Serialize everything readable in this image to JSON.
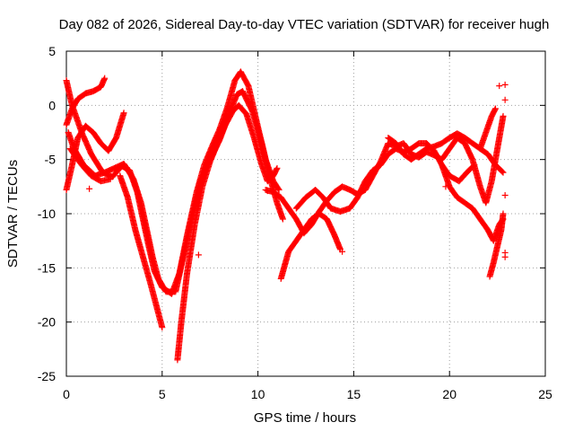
{
  "chart_data": {
    "type": "scatter",
    "title": "Day 082 of 2026, Sidereal Day-to-day VTEC variation (SDTVAR) for receiver hugh",
    "xlabel": "GPS time / hours",
    "ylabel": "SDTVAR / TECUs",
    "xlim": [
      0,
      25
    ],
    "ylim": [
      -25,
      5
    ],
    "x_ticks": [
      0,
      5,
      10,
      15,
      20,
      25
    ],
    "y_ticks": [
      -25,
      -20,
      -15,
      -10,
      -5,
      0,
      5
    ],
    "grid": true,
    "marker": "+",
    "color": "#ff0000",
    "tracks": [
      [
        [
          0.0,
          2.3
        ],
        [
          0.3,
          0.0
        ],
        [
          0.8,
          -2.5
        ],
        [
          1.3,
          -4.5
        ],
        [
          1.9,
          -6.2
        ],
        [
          2.4,
          -6.6
        ],
        [
          2.9,
          -5.6
        ],
        [
          3.3,
          -6.0
        ],
        [
          3.7,
          -8.0
        ],
        [
          4.0,
          -10.5
        ],
        [
          4.3,
          -13.0
        ],
        [
          4.6,
          -15.3
        ],
        [
          5.0,
          -16.8
        ],
        [
          5.5,
          -17.4
        ],
        [
          5.9,
          -15.5
        ],
        [
          6.3,
          -12.0
        ],
        [
          6.8,
          -8.0
        ],
        [
          7.2,
          -5.5
        ],
        [
          7.6,
          -3.8
        ],
        [
          8.0,
          -2.2
        ],
        [
          8.4,
          -0.2
        ],
        [
          8.8,
          2.3
        ],
        [
          9.1,
          3.1
        ],
        [
          9.5,
          1.8
        ],
        [
          10.0,
          -2.0
        ],
        [
          10.4,
          -5.0
        ],
        [
          10.8,
          -7.0
        ],
        [
          11.1,
          -7.8
        ]
      ],
      [
        [
          0.1,
          -2.5
        ],
        [
          0.4,
          -4.0
        ],
        [
          0.9,
          -5.5
        ],
        [
          1.5,
          -6.5
        ],
        [
          2.0,
          -6.2
        ],
        [
          2.5,
          -5.8
        ],
        [
          3.0,
          -5.4
        ],
        [
          3.5,
          -6.8
        ],
        [
          3.9,
          -9.0
        ],
        [
          4.2,
          -11.5
        ],
        [
          4.5,
          -14.0
        ],
        [
          4.8,
          -16.0
        ],
        [
          5.2,
          -17.2
        ],
        [
          5.7,
          -17.2
        ],
        [
          6.1,
          -14.0
        ],
        [
          6.6,
          -10.0
        ],
        [
          7.0,
          -7.0
        ],
        [
          7.5,
          -5.0
        ],
        [
          8.0,
          -3.2
        ],
        [
          8.5,
          -0.8
        ],
        [
          8.9,
          1.0
        ],
        [
          9.2,
          1.3
        ],
        [
          9.7,
          -0.5
        ],
        [
          10.2,
          -3.5
        ],
        [
          10.6,
          -6.5
        ],
        [
          11.0,
          -9.0
        ],
        [
          11.3,
          -10.5
        ]
      ],
      [
        [
          0.0,
          -7.8
        ],
        [
          0.3,
          -5.5
        ],
        [
          0.6,
          -3.0
        ],
        [
          1.0,
          -1.9
        ],
        [
          1.4,
          -2.5
        ],
        [
          1.8,
          -3.5
        ],
        [
          2.2,
          -4.2
        ],
        [
          2.6,
          -3.0
        ],
        [
          3.0,
          -0.7
        ]
      ],
      [
        [
          0.0,
          -1.8
        ],
        [
          0.3,
          -0.3
        ],
        [
          0.6,
          0.6
        ],
        [
          1.0,
          1.1
        ],
        [
          1.4,
          1.3
        ],
        [
          1.8,
          1.7
        ],
        [
          2.0,
          2.5
        ]
      ],
      [
        [
          0.2,
          -4.0
        ],
        [
          0.8,
          -5.5
        ],
        [
          1.3,
          -6.5
        ],
        [
          1.8,
          -7.0
        ],
        [
          2.3,
          -6.8
        ]
      ],
      [
        [
          2.8,
          -6.5
        ],
        [
          3.2,
          -8.5
        ],
        [
          3.6,
          -11.5
        ],
        [
          4.0,
          -14.0
        ],
        [
          4.4,
          -16.5
        ],
        [
          4.7,
          -18.5
        ],
        [
          5.0,
          -20.5
        ]
      ],
      [
        [
          5.8,
          -23.5
        ],
        [
          6.0,
          -20.0
        ],
        [
          6.3,
          -15.5
        ],
        [
          6.7,
          -11.0
        ],
        [
          7.1,
          -7.5
        ],
        [
          7.5,
          -5.2
        ],
        [
          7.9,
          -3.5
        ],
        [
          8.3,
          -1.8
        ],
        [
          8.7,
          -0.5
        ],
        [
          9.0,
          0.0
        ],
        [
          9.4,
          -0.8
        ],
        [
          9.8,
          -3.0
        ],
        [
          10.2,
          -5.5
        ],
        [
          10.5,
          -7.0
        ],
        [
          10.8,
          -6.5
        ],
        [
          11.0,
          -5.8
        ]
      ],
      [
        [
          10.4,
          -7.8
        ],
        [
          10.8,
          -8.0
        ],
        [
          11.2,
          -8.5
        ],
        [
          11.6,
          -9.5
        ],
        [
          12.0,
          -10.5
        ],
        [
          12.4,
          -11.8
        ],
        [
          12.8,
          -11.0
        ],
        [
          13.2,
          -9.8
        ],
        [
          13.6,
          -8.8
        ],
        [
          14.0,
          -8.0
        ],
        [
          14.4,
          -7.5
        ],
        [
          14.8,
          -7.8
        ],
        [
          15.2,
          -8.2
        ],
        [
          15.6,
          -7.8
        ],
        [
          16.0,
          -6.5
        ],
        [
          16.4,
          -5.2
        ],
        [
          16.8,
          -3.5
        ],
        [
          17.2,
          -3.8
        ],
        [
          17.6,
          -3.5
        ],
        [
          18.0,
          -4.5
        ],
        [
          18.4,
          -4.8
        ],
        [
          18.8,
          -4.3
        ],
        [
          19.2,
          -4.6
        ],
        [
          19.6,
          -5.0
        ],
        [
          20.0,
          -4.0
        ],
        [
          20.4,
          -3.0
        ],
        [
          20.8,
          -3.5
        ],
        [
          21.2,
          -5.0
        ],
        [
          21.6,
          -7.5
        ],
        [
          21.9,
          -9.0
        ],
        [
          22.2,
          -7.0
        ],
        [
          22.5,
          -4.0
        ],
        [
          22.8,
          -1.0
        ]
      ],
      [
        [
          11.2,
          -16.0
        ],
        [
          11.6,
          -13.5
        ],
        [
          12.0,
          -12.5
        ],
        [
          12.4,
          -11.5
        ],
        [
          12.8,
          -10.5
        ],
        [
          13.2,
          -10.0
        ],
        [
          13.6,
          -10.5
        ],
        [
          14.0,
          -12.0
        ],
        [
          14.3,
          -13.3
        ]
      ],
      [
        [
          12.0,
          -9.5
        ],
        [
          12.5,
          -8.5
        ],
        [
          13.0,
          -7.8
        ],
        [
          13.4,
          -8.5
        ],
        [
          13.8,
          -9.5
        ],
        [
          14.3,
          -9.8
        ],
        [
          14.8,
          -9.5
        ],
        [
          15.2,
          -8.5
        ],
        [
          15.6,
          -7.0
        ],
        [
          16.0,
          -6.0
        ],
        [
          16.4,
          -5.5
        ],
        [
          16.8,
          -4.5
        ],
        [
          17.2,
          -4.0
        ],
        [
          17.6,
          -4.3
        ],
        [
          18.0,
          -4.0
        ],
        [
          18.4,
          -3.5
        ],
        [
          18.8,
          -3.5
        ],
        [
          19.2,
          -4.2
        ],
        [
          19.6,
          -5.5
        ],
        [
          20.0,
          -7.5
        ],
        [
          20.4,
          -8.5
        ],
        [
          20.8,
          -9.0
        ],
        [
          21.2,
          -9.5
        ],
        [
          21.6,
          -10.5
        ],
        [
          22.0,
          -11.5
        ],
        [
          22.3,
          -12.5
        ],
        [
          22.6,
          -11.0
        ],
        [
          22.8,
          -10.5
        ]
      ],
      [
        [
          16.8,
          -3.0
        ],
        [
          17.2,
          -3.5
        ],
        [
          17.6,
          -4.5
        ],
        [
          18.0,
          -5.0
        ],
        [
          18.4,
          -4.5
        ],
        [
          18.8,
          -4.0
        ],
        [
          19.2,
          -3.8
        ],
        [
          19.6,
          -3.5
        ],
        [
          20.0,
          -3.0
        ],
        [
          20.4,
          -2.6
        ],
        [
          20.8,
          -3.0
        ],
        [
          21.2,
          -3.5
        ],
        [
          21.6,
          -4.0
        ],
        [
          22.0,
          -4.5
        ],
        [
          22.4,
          -5.5
        ],
        [
          22.8,
          -6.2
        ]
      ],
      [
        [
          22.1,
          -15.8
        ],
        [
          22.3,
          -14.5
        ],
        [
          22.5,
          -13.0
        ],
        [
          22.7,
          -11.5
        ],
        [
          22.8,
          -10.0
        ]
      ],
      [
        [
          21.6,
          -4.0
        ],
        [
          21.9,
          -2.5
        ],
        [
          22.2,
          -1.0
        ],
        [
          22.4,
          -0.3
        ]
      ],
      [
        [
          19.6,
          -5.5
        ],
        [
          20.0,
          -6.5
        ],
        [
          20.5,
          -7.0
        ],
        [
          20.9,
          -6.2
        ],
        [
          21.3,
          -5.5
        ]
      ]
    ],
    "scattered_points": [
      [
        1.2,
        -7.7
      ],
      [
        22.6,
        1.8
      ],
      [
        22.9,
        1.9
      ],
      [
        22.9,
        0.5
      ],
      [
        22.9,
        -8.3
      ],
      [
        22.9,
        -13.6
      ],
      [
        22.9,
        -14.0
      ],
      [
        19.8,
        -7.5
      ],
      [
        6.9,
        -13.8
      ],
      [
        14.4,
        -13.5
      ],
      [
        10.5,
        -7.9
      ]
    ]
  }
}
